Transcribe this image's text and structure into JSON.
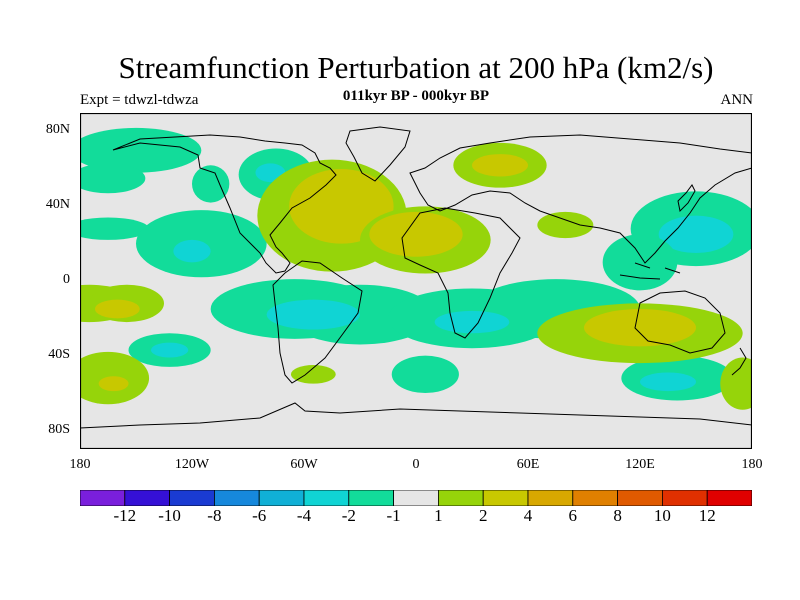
{
  "header": {
    "title": "Streamfunction Perturbation at 200 hPa (km2/s)",
    "left": "Expt = tdwzl-tdwza",
    "center": "011kyr BP - 000kyr BP",
    "right": "ANN"
  },
  "axes": {
    "lat_ticks": [
      "80N",
      "40N",
      "0",
      "40S",
      "80S"
    ],
    "lon_ticks": [
      "180",
      "120W",
      "60W",
      "0",
      "60E",
      "120E",
      "180"
    ]
  },
  "colorbar": {
    "colors": [
      "#7a1fdc",
      "#3510d6",
      "#1a3bd2",
      "#1688dc",
      "#10b0d6",
      "#10d4d4",
      "#12dc9a",
      "#e6e6e6",
      "#96d40a",
      "#c8c800",
      "#d8a800",
      "#e08000",
      "#e05a00",
      "#e03000",
      "#e00000"
    ],
    "labels": [
      "-12",
      "-10",
      "-8",
      "-6",
      "-4",
      "-2",
      "-1",
      "1",
      "2",
      "4",
      "6",
      "8",
      "10",
      "12"
    ]
  },
  "map": {
    "background": "#e6e6e6",
    "blobs": [
      {
        "lon": -150,
        "lat": 70,
        "rx": 35,
        "ry": 12,
        "level": 6
      },
      {
        "lon": -165,
        "lat": 55,
        "rx": 20,
        "ry": 8,
        "level": 6
      },
      {
        "lon": -110,
        "lat": 52,
        "rx": 10,
        "ry": 10,
        "level": 6
      },
      {
        "lon": -75,
        "lat": 57,
        "rx": 20,
        "ry": 14,
        "level": 6
      },
      {
        "lon": -78,
        "lat": 58,
        "rx": 8,
        "ry": 5,
        "level": 5
      },
      {
        "lon": -165,
        "lat": 28,
        "rx": 22,
        "ry": 6,
        "level": 6
      },
      {
        "lon": -115,
        "lat": 20,
        "rx": 35,
        "ry": 18,
        "level": 6
      },
      {
        "lon": -120,
        "lat": 16,
        "rx": 10,
        "ry": 6,
        "level": 5
      },
      {
        "lon": -175,
        "lat": -12,
        "rx": 25,
        "ry": 10,
        "level": 8
      },
      {
        "lon": -155,
        "lat": -12,
        "rx": 20,
        "ry": 10,
        "level": 8
      },
      {
        "lon": -160,
        "lat": -15,
        "rx": 12,
        "ry": 5,
        "level": 9
      },
      {
        "lon": -65,
        "lat": -15,
        "rx": 45,
        "ry": 16,
        "level": 6
      },
      {
        "lon": -30,
        "lat": -18,
        "rx": 40,
        "ry": 16,
        "level": 6
      },
      {
        "lon": 30,
        "lat": -20,
        "rx": 45,
        "ry": 16,
        "level": 6
      },
      {
        "lon": 75,
        "lat": -15,
        "rx": 45,
        "ry": 16,
        "level": 6
      },
      {
        "lon": -55,
        "lat": -18,
        "rx": 25,
        "ry": 8,
        "level": 5
      },
      {
        "lon": 30,
        "lat": -22,
        "rx": 20,
        "ry": 6,
        "level": 5
      },
      {
        "lon": -132,
        "lat": -37,
        "rx": 22,
        "ry": 9,
        "level": 6
      },
      {
        "lon": -132,
        "lat": -37,
        "rx": 10,
        "ry": 4,
        "level": 5
      },
      {
        "lon": -165,
        "lat": -52,
        "rx": 22,
        "ry": 14,
        "level": 8
      },
      {
        "lon": -162,
        "lat": -55,
        "rx": 8,
        "ry": 4,
        "level": 9
      },
      {
        "lon": -55,
        "lat": -50,
        "rx": 12,
        "ry": 5,
        "level": 8
      },
      {
        "lon": 5,
        "lat": -50,
        "rx": 18,
        "ry": 10,
        "level": 6
      },
      {
        "lon": 140,
        "lat": -52,
        "rx": 30,
        "ry": 12,
        "level": 6
      },
      {
        "lon": 135,
        "lat": -54,
        "rx": 15,
        "ry": 5,
        "level": 5
      },
      {
        "lon": 175,
        "lat": -55,
        "rx": 12,
        "ry": 14,
        "level": 8
      },
      {
        "lon": 120,
        "lat": -28,
        "rx": 55,
        "ry": 16,
        "level": 8
      },
      {
        "lon": 120,
        "lat": -25,
        "rx": 30,
        "ry": 10,
        "level": 9
      },
      {
        "lon": -45,
        "lat": 35,
        "rx": 40,
        "ry": 30,
        "level": 8
      },
      {
        "lon": -40,
        "lat": 40,
        "rx": 28,
        "ry": 20,
        "level": 9
      },
      {
        "lon": 5,
        "lat": 22,
        "rx": 35,
        "ry": 18,
        "level": 8
      },
      {
        "lon": 0,
        "lat": 25,
        "rx": 25,
        "ry": 12,
        "level": 9
      },
      {
        "lon": 45,
        "lat": 62,
        "rx": 25,
        "ry": 12,
        "level": 8
      },
      {
        "lon": 45,
        "lat": 62,
        "rx": 15,
        "ry": 6,
        "level": 9
      },
      {
        "lon": 80,
        "lat": 30,
        "rx": 15,
        "ry": 7,
        "level": 8
      },
      {
        "lon": 150,
        "lat": 28,
        "rx": 35,
        "ry": 20,
        "level": 6
      },
      {
        "lon": 150,
        "lat": 25,
        "rx": 20,
        "ry": 10,
        "level": 5
      },
      {
        "lon": 120,
        "lat": 10,
        "rx": 20,
        "ry": 15,
        "level": 6
      }
    ]
  }
}
